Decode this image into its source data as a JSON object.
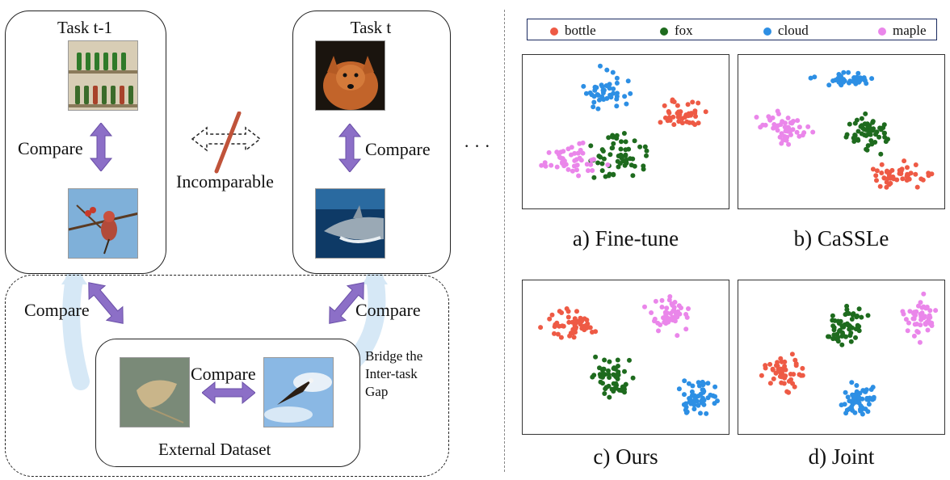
{
  "diagram": {
    "task_prev": {
      "title": "Task t-1",
      "compare": "Compare"
    },
    "task_curr": {
      "title": "Task t",
      "compare": "Compare"
    },
    "incomparable": "Incomparable",
    "ellipsis": "· · ·",
    "external": {
      "title": "External Dataset",
      "compare_inner": "Compare",
      "compare_left": "Compare",
      "compare_right": "Compare"
    },
    "bridge_note": [
      "Bridge the",
      "Inter-task",
      "Gap"
    ]
  },
  "legend": [
    {
      "label": "bottle",
      "color": "#ee5a45"
    },
    {
      "label": "fox",
      "color": "#1e6b1e"
    },
    {
      "label": "cloud",
      "color": "#2d8fe4"
    },
    {
      "label": "maple",
      "color": "#ea86ea"
    }
  ],
  "panels": [
    {
      "caption": "a) Fine-tune"
    },
    {
      "caption": "b) CaSSLe"
    },
    {
      "caption": "c) Ours"
    },
    {
      "caption": "d) Joint"
    }
  ],
  "colors": {
    "arrow_purple": "#8c6fc7",
    "bridge_blue": "#d6e8f6",
    "incomparable_slash": "#c0533a"
  }
}
